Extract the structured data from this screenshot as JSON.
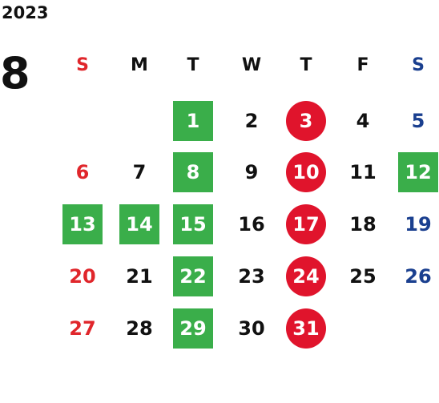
{
  "year": "2023",
  "month": "8",
  "weekdays": [
    "S",
    "M",
    "T",
    "W",
    "T",
    "F",
    "S"
  ],
  "weekday_colors": [
    "#e0262b",
    "#111111",
    "#111111",
    "#111111",
    "#111111",
    "#111111",
    "#1a3f8f"
  ],
  "highlight_colors": {
    "square": "#3aae4a",
    "circle": "#e0142c"
  },
  "weeks": [
    [
      null,
      null,
      {
        "day": "1",
        "style": "square"
      },
      {
        "day": "2"
      },
      {
        "day": "3",
        "style": "circle"
      },
      {
        "day": "4"
      },
      {
        "day": "5"
      }
    ],
    [
      {
        "day": "6"
      },
      {
        "day": "7"
      },
      {
        "day": "8",
        "style": "square"
      },
      {
        "day": "9"
      },
      {
        "day": "10",
        "style": "circle"
      },
      {
        "day": "11"
      },
      {
        "day": "12",
        "style": "square"
      }
    ],
    [
      {
        "day": "13",
        "style": "square"
      },
      {
        "day": "14",
        "style": "square"
      },
      {
        "day": "15",
        "style": "square"
      },
      {
        "day": "16"
      },
      {
        "day": "17",
        "style": "circle"
      },
      {
        "day": "18"
      },
      {
        "day": "19"
      }
    ],
    [
      {
        "day": "20"
      },
      {
        "day": "21"
      },
      {
        "day": "22",
        "style": "square"
      },
      {
        "day": "23"
      },
      {
        "day": "24",
        "style": "circle"
      },
      {
        "day": "25"
      },
      {
        "day": "26"
      }
    ],
    [
      {
        "day": "27"
      },
      {
        "day": "28"
      },
      {
        "day": "29",
        "style": "square"
      },
      {
        "day": "30"
      },
      {
        "day": "31",
        "style": "circle"
      },
      null,
      null
    ]
  ]
}
